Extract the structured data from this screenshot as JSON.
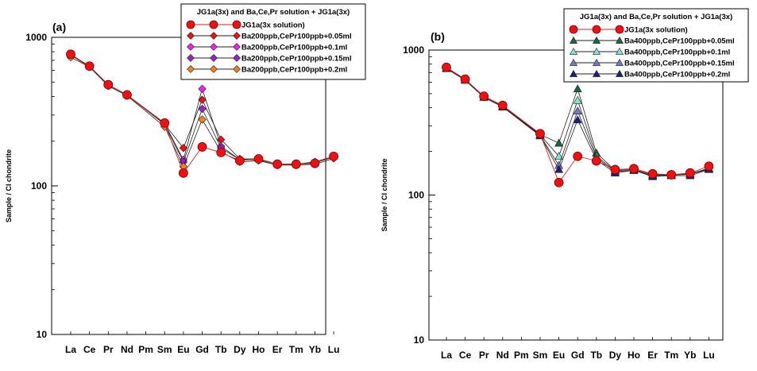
{
  "chart_data": [
    {
      "type": "line",
      "panel_label": "(a)",
      "ylabel": "Sample / CI chondrite",
      "xlabel": "",
      "y_scale": "log",
      "ylim": [
        10,
        1000
      ],
      "y_ticks": [
        "10",
        "100",
        "1000"
      ],
      "grid": false,
      "legend_position": "top-right",
      "legend_title": "JG1a(3x) and Ba,Ce,Pr solution + JG1a(3x)",
      "categories": [
        "La",
        "Ce",
        "Pr",
        "Nd",
        "Pm",
        "Sm",
        "Eu",
        "Gd",
        "Tb",
        "Dy",
        "Ho",
        "Er",
        "Tm",
        "Yb",
        "Lu"
      ],
      "series": [
        {
          "name": "JG1a(3x solution)",
          "marker": "circle",
          "color": "#ee1111",
          "values": [
            770,
            640,
            480,
            410,
            null,
            265,
            122,
            183,
            168,
            148,
            152,
            140,
            140,
            142,
            158
          ]
        },
        {
          "name": "Ba200ppb,CePr100ppb+0.05ml",
          "marker": "diamond",
          "color": "#ee1111",
          "values": [
            760,
            635,
            480,
            410,
            null,
            260,
            180,
            380,
            205,
            152,
            152,
            140,
            140,
            145,
            158
          ]
        },
        {
          "name": "Ba200ppb,CePr100ppb+0.1ml",
          "marker": "diamond",
          "color": "#ee22ee",
          "values": [
            765,
            638,
            478,
            410,
            null,
            262,
            150,
            450,
            185,
            150,
            152,
            140,
            140,
            143,
            156
          ]
        },
        {
          "name": "Ba200ppb,CePr100ppb+0.15ml",
          "marker": "diamond",
          "color": "#9922cc",
          "values": [
            762,
            636,
            478,
            408,
            null,
            260,
            145,
            330,
            180,
            150,
            150,
            140,
            140,
            143,
            156
          ]
        },
        {
          "name": "Ba200ppb,CePr100ppb+0.2ml",
          "marker": "diamond",
          "color": "#f08020",
          "values": [
            735,
            632,
            470,
            405,
            null,
            250,
            135,
            280,
            170,
            145,
            148,
            138,
            138,
            140,
            153
          ]
        }
      ]
    },
    {
      "type": "line",
      "panel_label": "(b)",
      "ylabel": "Sample / CI chondrite",
      "xlabel": "",
      "y_scale": "log",
      "ylim": [
        10,
        1000
      ],
      "y_ticks": [
        "10",
        "100",
        "1000"
      ],
      "grid": false,
      "legend_position": "top-right",
      "legend_title": "JG1a(3x) and Ba,Ce,Pr solution + JG1a(3x)",
      "categories": [
        "La",
        "Ce",
        "Pr",
        "Nd",
        "Pm",
        "Sm",
        "Eu",
        "Gd",
        "Tb",
        "Dy",
        "Ho",
        "Er",
        "Tm",
        "Yb",
        "Lu"
      ],
      "series": [
        {
          "name": "JG1a(3x solution)",
          "marker": "circle",
          "color": "#ee1111",
          "values": [
            760,
            630,
            480,
            415,
            null,
            265,
            122,
            185,
            172,
            150,
            152,
            140,
            138,
            142,
            158
          ]
        },
        {
          "name": "Ba400ppb,CePr100ppb+0.05ml",
          "marker": "triangle",
          "color": "#1a6640",
          "values": [
            750,
            625,
            475,
            410,
            null,
            262,
            228,
            540,
            195,
            148,
            150,
            138,
            138,
            140,
            153
          ]
        },
        {
          "name": "Ba400ppb,CePr100ppb+0.1ml",
          "marker": "triangle",
          "color": "#88e0d0",
          "values": [
            748,
            624,
            474,
            408,
            null,
            260,
            185,
            450,
            185,
            147,
            150,
            138,
            138,
            140,
            152
          ]
        },
        {
          "name": "Ba400ppb,CePr100ppb+0.15ml",
          "marker": "triangle",
          "color": "#7777cc",
          "values": [
            746,
            622,
            473,
            406,
            null,
            258,
            160,
            380,
            180,
            145,
            148,
            136,
            137,
            139,
            151
          ]
        },
        {
          "name": "Ba400ppb,CePr100ppb+0.2ml",
          "marker": "triangle",
          "color": "#1a2080",
          "values": [
            745,
            620,
            472,
            405,
            null,
            256,
            150,
            330,
            175,
            142,
            148,
            134,
            136,
            136,
            150
          ]
        }
      ]
    }
  ]
}
